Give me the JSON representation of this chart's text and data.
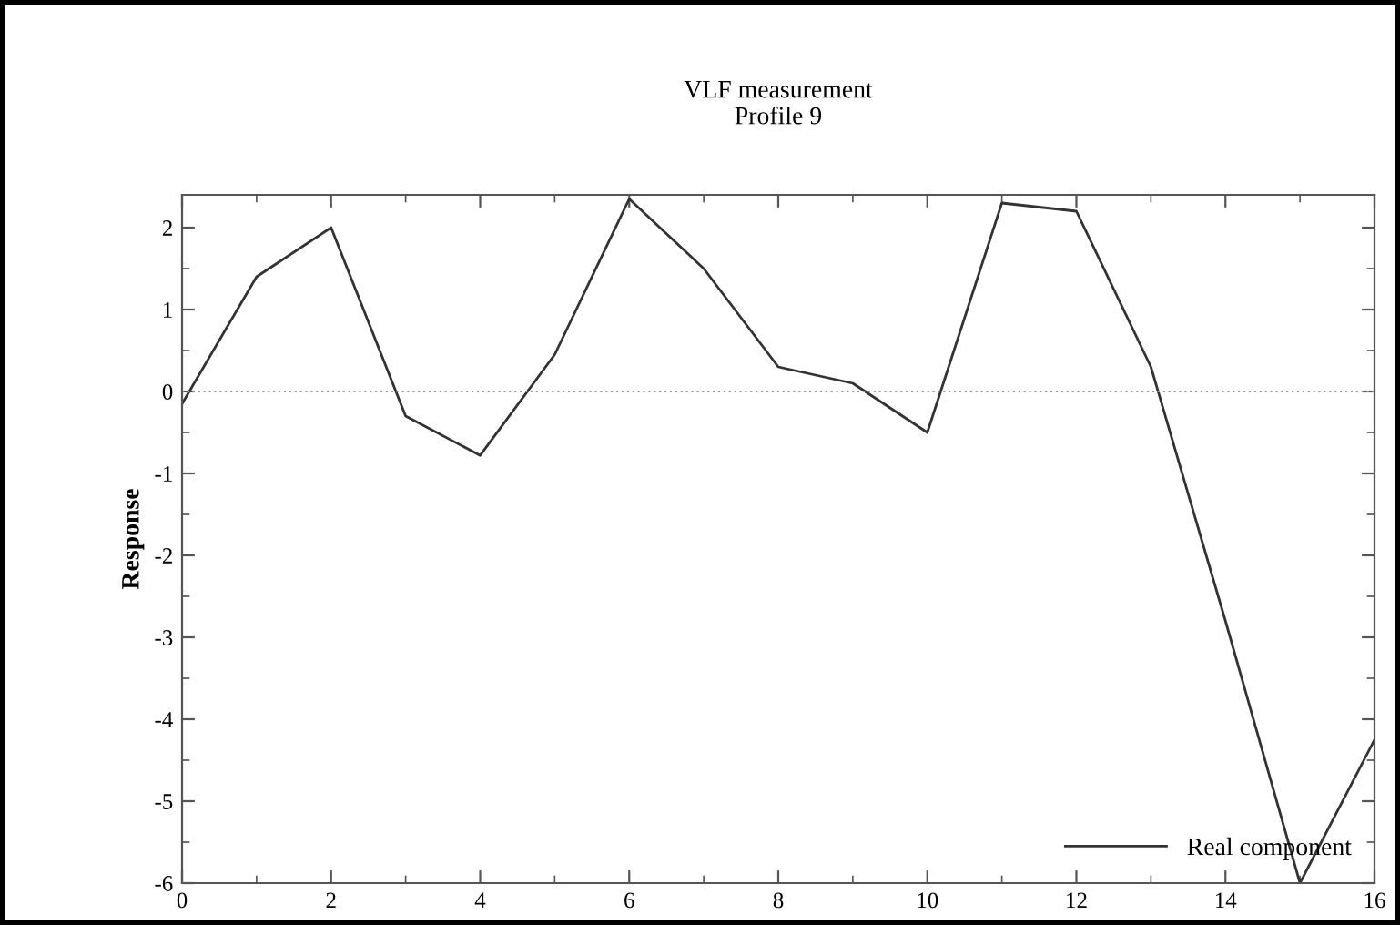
{
  "chart_data": {
    "type": "line",
    "title": "VLF measurement\nProfile 9",
    "ylabel": "Response",
    "x": [
      0,
      1,
      2,
      3,
      4,
      5,
      6,
      7,
      8,
      9,
      10,
      11,
      12,
      13,
      14,
      15,
      16
    ],
    "series": [
      {
        "name": "Real component",
        "color": "#333333",
        "values": [
          -0.15,
          1.4,
          2.0,
          -0.3,
          -0.78,
          0.45,
          2.35,
          1.5,
          0.3,
          0.1,
          -0.5,
          2.3,
          2.2,
          0.3,
          -2.8,
          -6.0,
          -4.25
        ]
      }
    ],
    "xlim": [
      0,
      16
    ],
    "xticks": [
      0,
      2,
      4,
      6,
      8,
      10,
      12,
      14,
      16
    ],
    "ylim": [
      -6,
      2.4
    ],
    "yticks": [
      -6,
      -5,
      -4,
      -3,
      -2,
      -1,
      0,
      1,
      2
    ],
    "ref_lines": [
      {
        "axis": "y",
        "value": 0,
        "color": "#999999",
        "line_style": "dotted"
      }
    ],
    "grid": false,
    "legend": "bottom right",
    "marker": "none",
    "line_style": "solid"
  }
}
